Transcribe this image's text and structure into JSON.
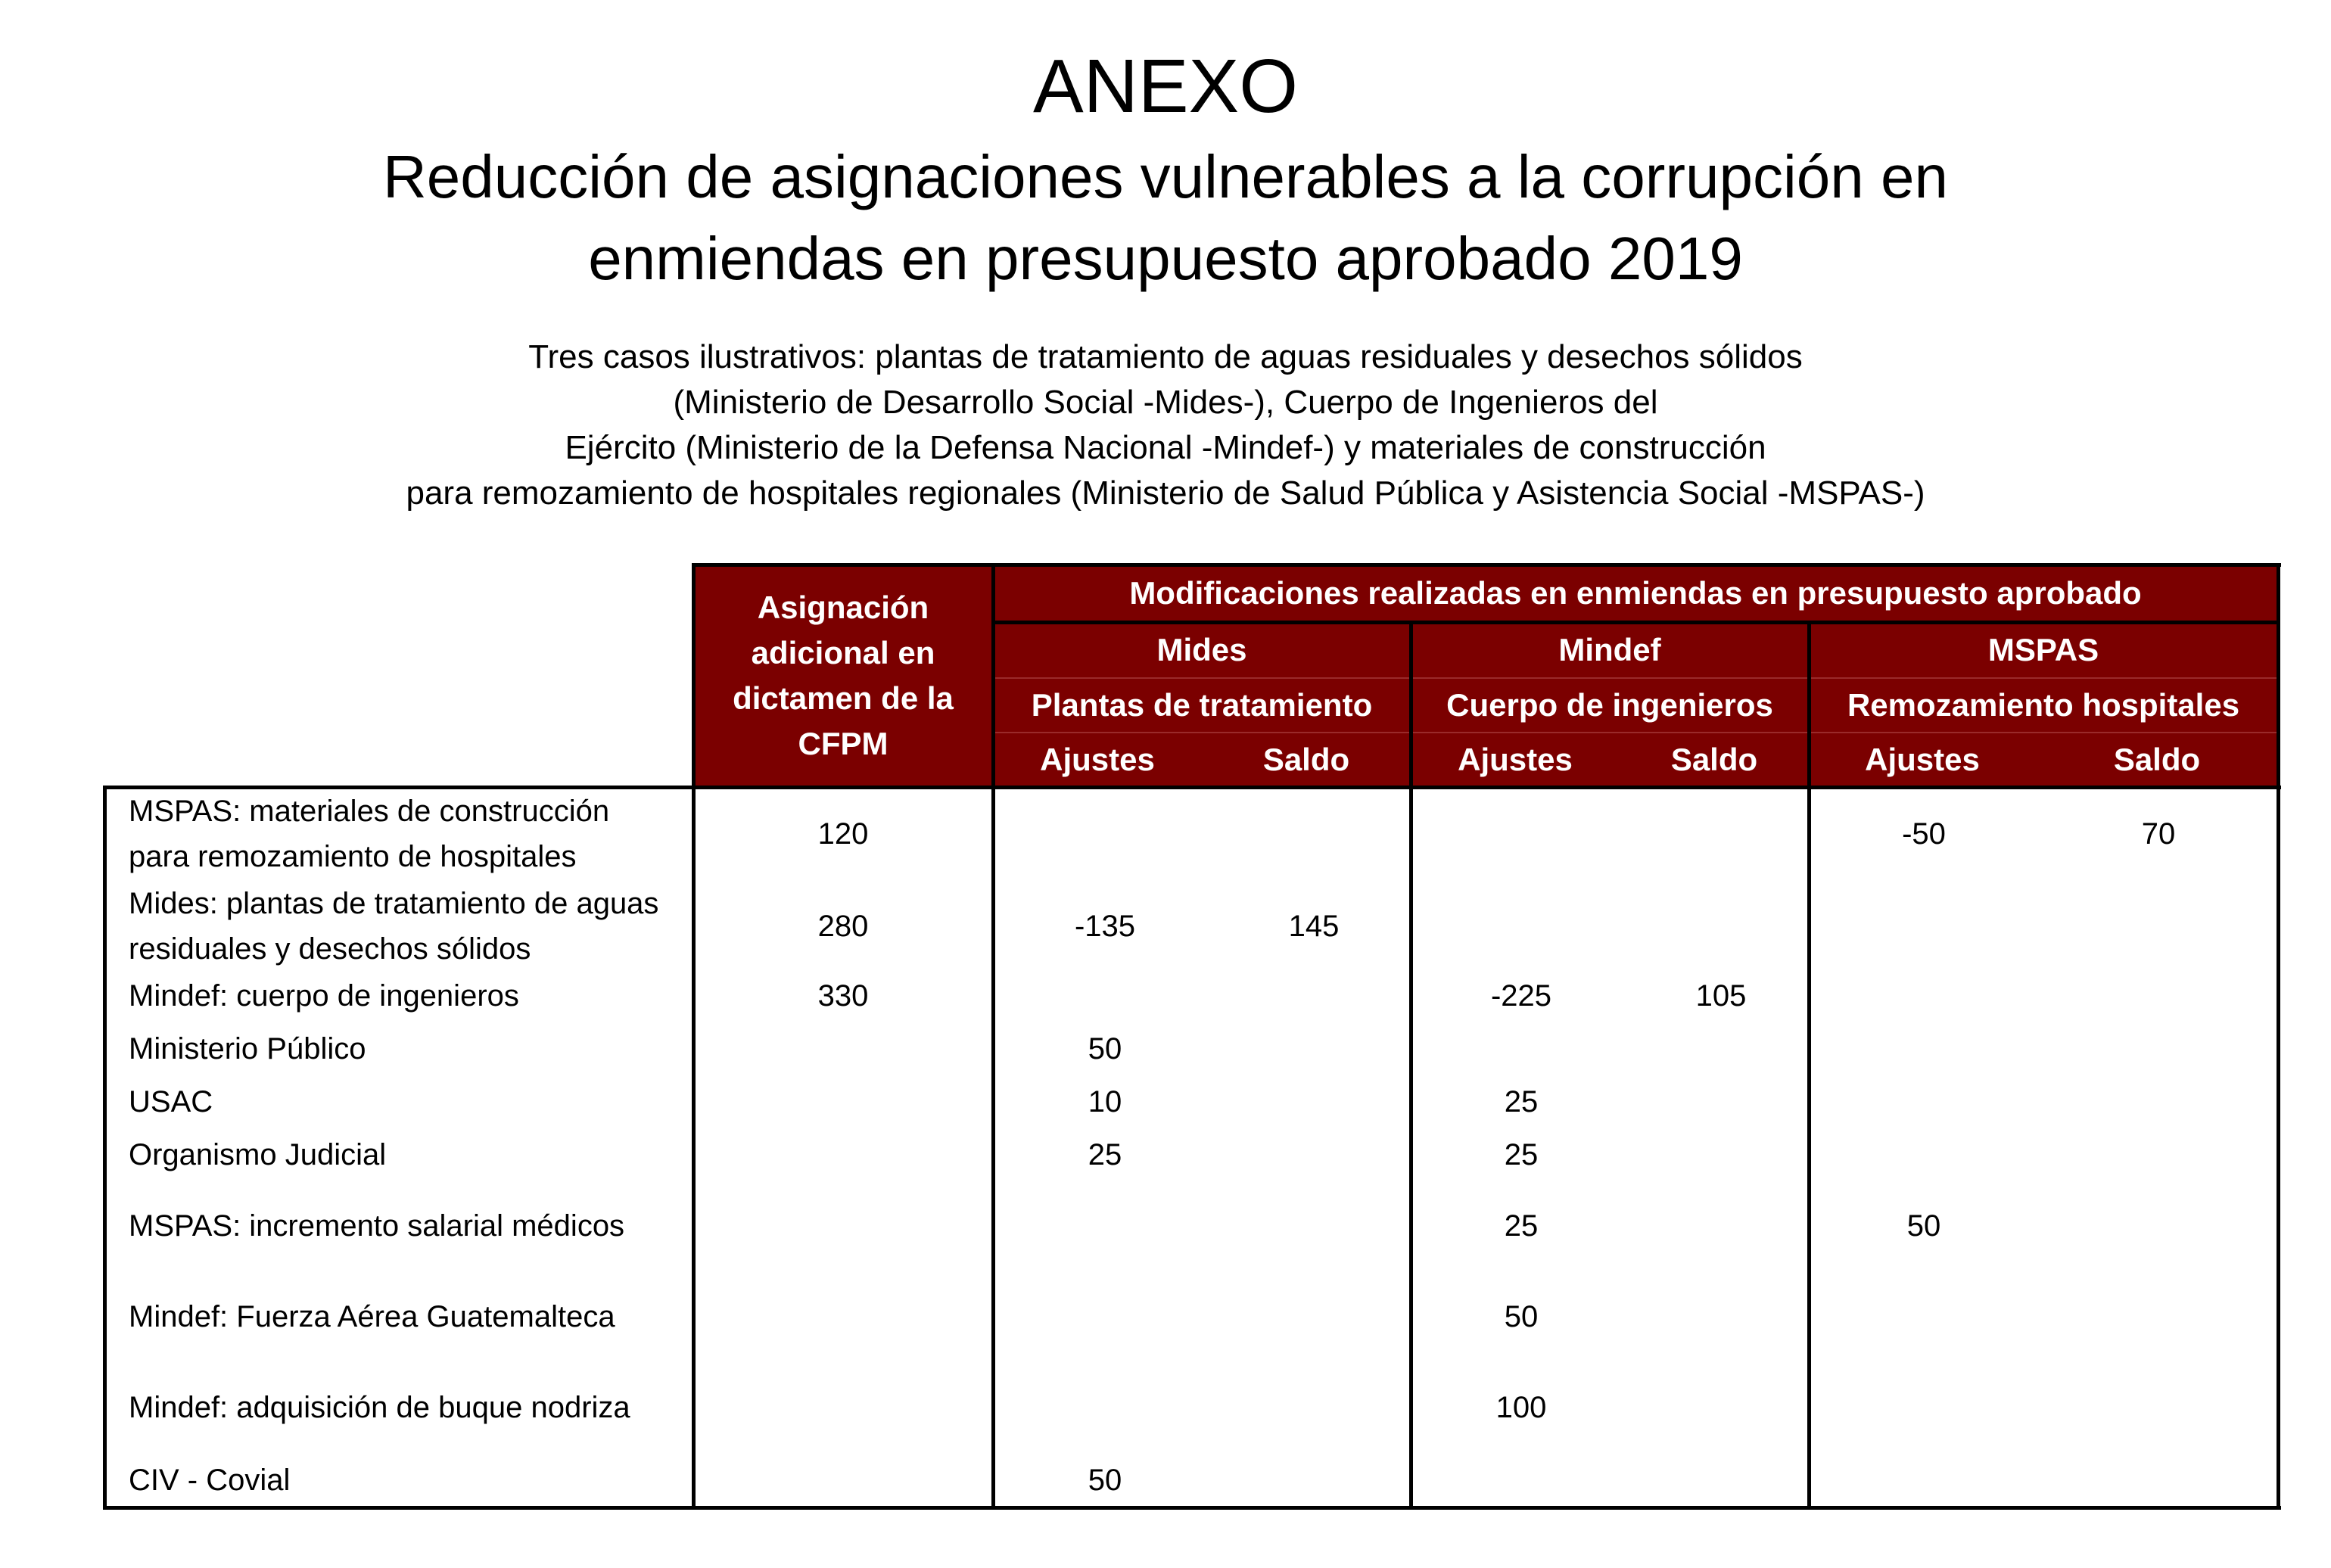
{
  "heading": "ANEXO",
  "title_lines": [
    "Reducción de asignaciones vulnerables a la corrupción en",
    "enmiendas en presupuesto aprobado 2019"
  ],
  "subtitle_lines": [
    "Tres casos ilustrativos: plantas de tratamiento de aguas residuales y desechos sólidos",
    "(Ministerio de Desarrollo Social -Mides-), Cuerpo de Ingenieros del",
    "Ejército (Ministerio de la Defensa Nacional -Mindef-) y materiales de construcción",
    "para remozamiento de hospitales regionales (Ministerio de Salud Pública y Asistencia Social -MSPAS-)"
  ],
  "colors": {
    "header_bg": "#7b0000",
    "header_text": "#ffffff"
  },
  "table": {
    "col_cfpm": "Asignación adicional en dictamen de la CFPM",
    "group_header": "Modificaciones realizadas en enmiendas en presupuesto aprobado",
    "groups": [
      {
        "name": "Mides",
        "sub": "Plantas de tratamiento",
        "cols": [
          "Ajustes",
          "Saldo"
        ]
      },
      {
        "name": "Mindef",
        "sub": "Cuerpo de ingenieros",
        "cols": [
          "Ajustes",
          "Saldo"
        ]
      },
      {
        "name": "MSPAS",
        "sub": "Remozamiento hospitales",
        "cols": [
          "Ajustes",
          "Saldo"
        ]
      }
    ],
    "rows": [
      {
        "label": "MSPAS: materiales de construcción para remozamiento de hospitales",
        "values": [
          "120",
          "",
          "",
          "",
          "",
          "-50",
          "70"
        ]
      },
      {
        "label": "Mides: plantas de tratamiento de aguas residuales y desechos sólidos",
        "values": [
          "280",
          "-135",
          "145",
          "",
          "",
          "",
          ""
        ]
      },
      {
        "label": "Mindef: cuerpo de ingenieros",
        "values": [
          "330",
          "",
          "",
          "-225",
          "105",
          "",
          ""
        ]
      },
      {
        "label": "Ministerio Público",
        "values": [
          "",
          "50",
          "",
          "",
          "",
          "",
          ""
        ]
      },
      {
        "label": "USAC",
        "values": [
          "",
          "10",
          "",
          "25",
          "",
          "",
          ""
        ]
      },
      {
        "label": "Organismo Judicial",
        "values": [
          "",
          "25",
          "",
          "25",
          "",
          "",
          ""
        ]
      },
      {
        "label": "MSPAS: incremento salarial médicos",
        "values": [
          "",
          "",
          "",
          "25",
          "",
          "50",
          ""
        ]
      },
      {
        "label": "Mindef: Fuerza Aérea Guatemalteca",
        "values": [
          "",
          "",
          "",
          "50",
          "",
          "",
          ""
        ]
      },
      {
        "label": "Mindef: adquisición de buque nodriza",
        "values": [
          "",
          "",
          "",
          "100",
          "",
          "",
          ""
        ]
      },
      {
        "label": "CIV - Covial",
        "values": [
          "",
          "50",
          "",
          "",
          "",
          "",
          ""
        ]
      }
    ]
  }
}
